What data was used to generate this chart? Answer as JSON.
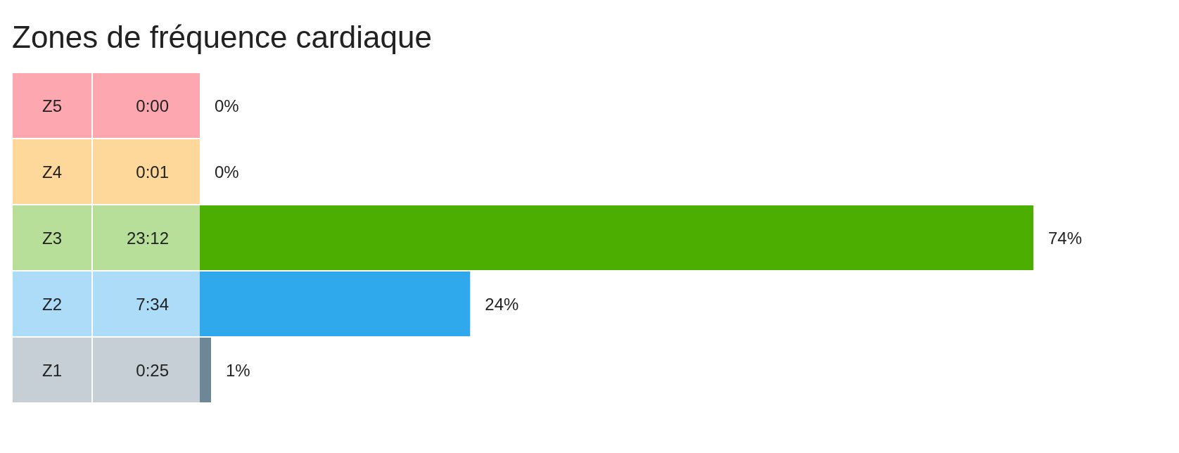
{
  "chart_data": {
    "type": "bar",
    "orientation": "horizontal",
    "title": "Zones de fréquence cardiaque",
    "categories": [
      "Z5",
      "Z4",
      "Z3",
      "Z2",
      "Z1"
    ],
    "values": [
      0,
      0,
      74,
      24,
      1
    ],
    "colors": [
      "#fa2339",
      "#fa9d02",
      "#4caf00",
      "#2fa8ec",
      "#6e8796"
    ],
    "value_labels": [
      "0%",
      "0%",
      "74%",
      "24%",
      "1%"
    ],
    "annotations": [
      "0:00",
      "0:01",
      "23:12",
      "7:34",
      "0:25"
    ],
    "grid": false,
    "legend": false
  }
}
